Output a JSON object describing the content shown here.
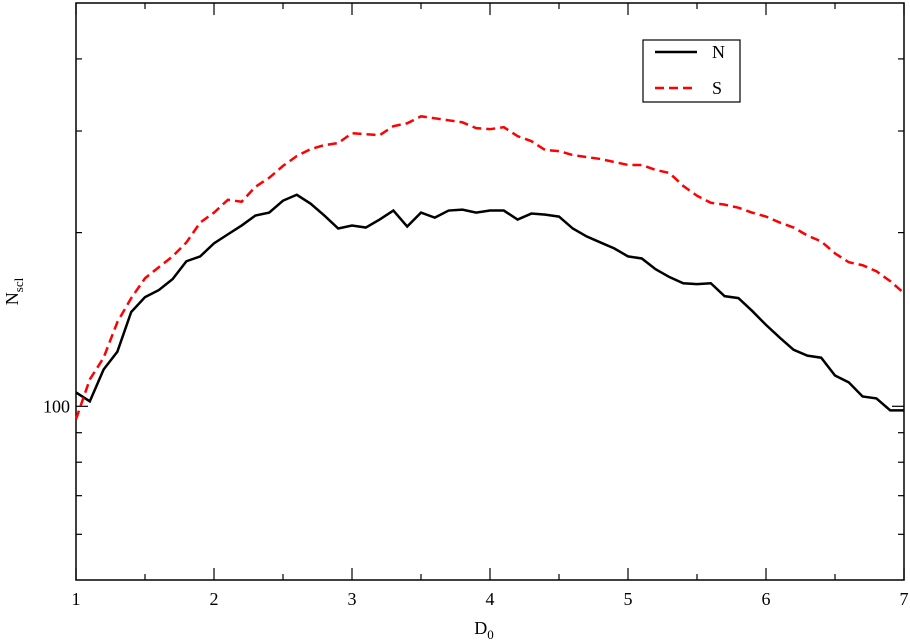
{
  "chart_data": {
    "type": "line",
    "xlabel": {
      "text": "D",
      "subscript": "0"
    },
    "ylabel": {
      "text": "N",
      "subscript": "scl"
    },
    "x": [
      1,
      1.1,
      1.2,
      1.3,
      1.4,
      1.5,
      1.6,
      1.7,
      1.8,
      1.9,
      2,
      2.1,
      2.2,
      2.3,
      2.4,
      2.5,
      2.6,
      2.7,
      2.8,
      2.9,
      3,
      3.1,
      3.2,
      3.3,
      3.4,
      3.5,
      3.6,
      3.7,
      3.8,
      3.9,
      4,
      4.1,
      4.2,
      4.3,
      4.4,
      4.5,
      4.6,
      4.7,
      4.8,
      4.9,
      5,
      5.1,
      5.2,
      5.3,
      5.4,
      5.5,
      5.6,
      5.7,
      5.8,
      5.9,
      6,
      6.1,
      6.2,
      6.3,
      6.4,
      6.5,
      6.6,
      6.7,
      6.8,
      6.9,
      7
    ],
    "series": [
      {
        "name": "N",
        "color": "#000000",
        "dash": false,
        "values": [
          105.7,
          102.0,
          115.8,
          124.4,
          145.7,
          154.6,
          159.0,
          166.1,
          178.4,
          181.9,
          191.6,
          198.6,
          205.7,
          214.1,
          216.6,
          227.2,
          232.6,
          224.5,
          214.1,
          203.3,
          205.7,
          204.1,
          210.7,
          218.4,
          204.9,
          216.6,
          212.3,
          218.4,
          219.2,
          216.6,
          218.4,
          218.4,
          210.7,
          215.8,
          214.9,
          213.2,
          203.3,
          197.0,
          192.3,
          187.8,
          181.9,
          180.4,
          172.8,
          167.5,
          163.4,
          162.8,
          163.4,
          155.2,
          154.0,
          146.3,
          138.4,
          131.5,
          125.3,
          122.4,
          121.4,
          113.1,
          110.0,
          104.0,
          103.2,
          98.4,
          98.4
        ]
      },
      {
        "name": "S",
        "color": "#ff0000",
        "dash": true,
        "values": [
          95.0,
          111.3,
          121.4,
          140.0,
          154.0,
          166.7,
          174.2,
          181.9,
          192.3,
          208.2,
          216.6,
          228.0,
          226.2,
          240.1,
          248.9,
          261.0,
          271.5,
          279.1,
          283.6,
          285.9,
          297.4,
          296.2,
          295.1,
          305.8,
          309.4,
          318.1,
          315.6,
          313.1,
          310.6,
          303.4,
          302.2,
          304.6,
          293.9,
          288.1,
          278.0,
          276.9,
          272.5,
          270.4,
          268.3,
          265.1,
          262.0,
          262.0,
          256.8,
          253.8,
          241.0,
          231.7,
          225.3,
          223.6,
          220.9,
          216.6,
          213.2,
          208.2,
          204.1,
          197.7,
          193.1,
          184.1,
          177.7,
          175.6,
          171.4,
          164.8,
          157.1
        ]
      }
    ],
    "xlim": [
      1,
      7
    ],
    "xticks": [
      1,
      2,
      3,
      4,
      5,
      6,
      7
    ],
    "xminor": [
      1.5,
      2.5,
      3.5,
      4.5,
      5.5,
      6.5
    ],
    "ylim": [
      50,
      500
    ],
    "ylog": true,
    "yticks": [
      100
    ],
    "yminor": [
      60,
      70,
      80,
      90,
      200,
      300,
      400
    ],
    "legend": "upper-right"
  }
}
